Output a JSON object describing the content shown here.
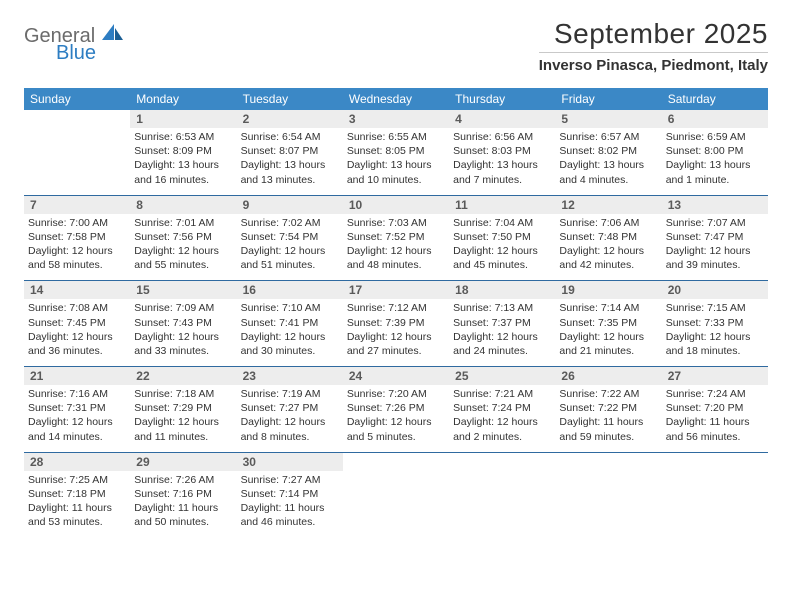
{
  "brand": {
    "g": "General",
    "b": "Blue"
  },
  "title": "September 2025",
  "location": "Inverso Pinasca, Piedmont, Italy",
  "colors": {
    "header_bg": "#3b88c6",
    "week_divider": "#2f6aa0",
    "daynum_bg": "#ededed",
    "logo_gray": "#6b6b6b",
    "logo_blue": "#2d7dc2"
  },
  "weekdays": [
    "Sunday",
    "Monday",
    "Tuesday",
    "Wednesday",
    "Thursday",
    "Friday",
    "Saturday"
  ],
  "weeks": [
    [
      {
        "n": "",
        "sr": "",
        "ss": "",
        "dl": ""
      },
      {
        "n": "1",
        "sr": "Sunrise: 6:53 AM",
        "ss": "Sunset: 8:09 PM",
        "dl": "Daylight: 13 hours and 16 minutes."
      },
      {
        "n": "2",
        "sr": "Sunrise: 6:54 AM",
        "ss": "Sunset: 8:07 PM",
        "dl": "Daylight: 13 hours and 13 minutes."
      },
      {
        "n": "3",
        "sr": "Sunrise: 6:55 AM",
        "ss": "Sunset: 8:05 PM",
        "dl": "Daylight: 13 hours and 10 minutes."
      },
      {
        "n": "4",
        "sr": "Sunrise: 6:56 AM",
        "ss": "Sunset: 8:03 PM",
        "dl": "Daylight: 13 hours and 7 minutes."
      },
      {
        "n": "5",
        "sr": "Sunrise: 6:57 AM",
        "ss": "Sunset: 8:02 PM",
        "dl": "Daylight: 13 hours and 4 minutes."
      },
      {
        "n": "6",
        "sr": "Sunrise: 6:59 AM",
        "ss": "Sunset: 8:00 PM",
        "dl": "Daylight: 13 hours and 1 minute."
      }
    ],
    [
      {
        "n": "7",
        "sr": "Sunrise: 7:00 AM",
        "ss": "Sunset: 7:58 PM",
        "dl": "Daylight: 12 hours and 58 minutes."
      },
      {
        "n": "8",
        "sr": "Sunrise: 7:01 AM",
        "ss": "Sunset: 7:56 PM",
        "dl": "Daylight: 12 hours and 55 minutes."
      },
      {
        "n": "9",
        "sr": "Sunrise: 7:02 AM",
        "ss": "Sunset: 7:54 PM",
        "dl": "Daylight: 12 hours and 51 minutes."
      },
      {
        "n": "10",
        "sr": "Sunrise: 7:03 AM",
        "ss": "Sunset: 7:52 PM",
        "dl": "Daylight: 12 hours and 48 minutes."
      },
      {
        "n": "11",
        "sr": "Sunrise: 7:04 AM",
        "ss": "Sunset: 7:50 PM",
        "dl": "Daylight: 12 hours and 45 minutes."
      },
      {
        "n": "12",
        "sr": "Sunrise: 7:06 AM",
        "ss": "Sunset: 7:48 PM",
        "dl": "Daylight: 12 hours and 42 minutes."
      },
      {
        "n": "13",
        "sr": "Sunrise: 7:07 AM",
        "ss": "Sunset: 7:47 PM",
        "dl": "Daylight: 12 hours and 39 minutes."
      }
    ],
    [
      {
        "n": "14",
        "sr": "Sunrise: 7:08 AM",
        "ss": "Sunset: 7:45 PM",
        "dl": "Daylight: 12 hours and 36 minutes."
      },
      {
        "n": "15",
        "sr": "Sunrise: 7:09 AM",
        "ss": "Sunset: 7:43 PM",
        "dl": "Daylight: 12 hours and 33 minutes."
      },
      {
        "n": "16",
        "sr": "Sunrise: 7:10 AM",
        "ss": "Sunset: 7:41 PM",
        "dl": "Daylight: 12 hours and 30 minutes."
      },
      {
        "n": "17",
        "sr": "Sunrise: 7:12 AM",
        "ss": "Sunset: 7:39 PM",
        "dl": "Daylight: 12 hours and 27 minutes."
      },
      {
        "n": "18",
        "sr": "Sunrise: 7:13 AM",
        "ss": "Sunset: 7:37 PM",
        "dl": "Daylight: 12 hours and 24 minutes."
      },
      {
        "n": "19",
        "sr": "Sunrise: 7:14 AM",
        "ss": "Sunset: 7:35 PM",
        "dl": "Daylight: 12 hours and 21 minutes."
      },
      {
        "n": "20",
        "sr": "Sunrise: 7:15 AM",
        "ss": "Sunset: 7:33 PM",
        "dl": "Daylight: 12 hours and 18 minutes."
      }
    ],
    [
      {
        "n": "21",
        "sr": "Sunrise: 7:16 AM",
        "ss": "Sunset: 7:31 PM",
        "dl": "Daylight: 12 hours and 14 minutes."
      },
      {
        "n": "22",
        "sr": "Sunrise: 7:18 AM",
        "ss": "Sunset: 7:29 PM",
        "dl": "Daylight: 12 hours and 11 minutes."
      },
      {
        "n": "23",
        "sr": "Sunrise: 7:19 AM",
        "ss": "Sunset: 7:27 PM",
        "dl": "Daylight: 12 hours and 8 minutes."
      },
      {
        "n": "24",
        "sr": "Sunrise: 7:20 AM",
        "ss": "Sunset: 7:26 PM",
        "dl": "Daylight: 12 hours and 5 minutes."
      },
      {
        "n": "25",
        "sr": "Sunrise: 7:21 AM",
        "ss": "Sunset: 7:24 PM",
        "dl": "Daylight: 12 hours and 2 minutes."
      },
      {
        "n": "26",
        "sr": "Sunrise: 7:22 AM",
        "ss": "Sunset: 7:22 PM",
        "dl": "Daylight: 11 hours and 59 minutes."
      },
      {
        "n": "27",
        "sr": "Sunrise: 7:24 AM",
        "ss": "Sunset: 7:20 PM",
        "dl": "Daylight: 11 hours and 56 minutes."
      }
    ],
    [
      {
        "n": "28",
        "sr": "Sunrise: 7:25 AM",
        "ss": "Sunset: 7:18 PM",
        "dl": "Daylight: 11 hours and 53 minutes."
      },
      {
        "n": "29",
        "sr": "Sunrise: 7:26 AM",
        "ss": "Sunset: 7:16 PM",
        "dl": "Daylight: 11 hours and 50 minutes."
      },
      {
        "n": "30",
        "sr": "Sunrise: 7:27 AM",
        "ss": "Sunset: 7:14 PM",
        "dl": "Daylight: 11 hours and 46 minutes."
      },
      {
        "n": "",
        "sr": "",
        "ss": "",
        "dl": ""
      },
      {
        "n": "",
        "sr": "",
        "ss": "",
        "dl": ""
      },
      {
        "n": "",
        "sr": "",
        "ss": "",
        "dl": ""
      },
      {
        "n": "",
        "sr": "",
        "ss": "",
        "dl": ""
      }
    ]
  ]
}
